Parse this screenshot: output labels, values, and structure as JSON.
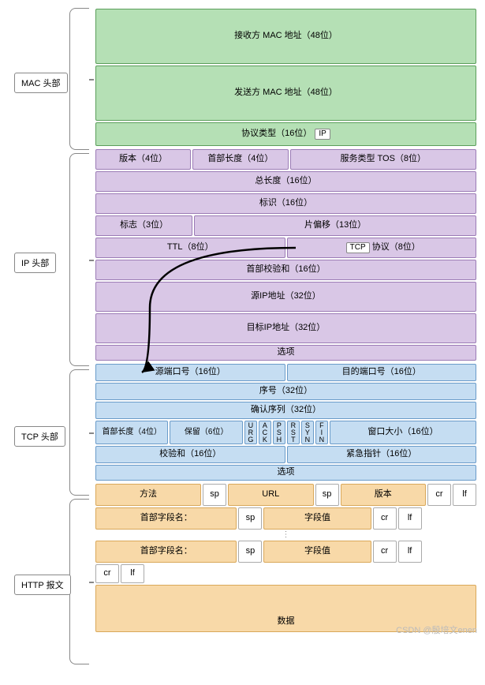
{
  "labels": {
    "mac": "MAC 头部",
    "ip": "IP 头部",
    "tcp": "TCP 头部",
    "http": "HTTP 报文"
  },
  "mac": {
    "dst": "接收方 MAC 地址（48位）",
    "src": "发送方 MAC 地址（48位）",
    "proto": "协议类型（16位）",
    "proto_badge": "IP"
  },
  "ip": {
    "version": "版本（4位）",
    "hlen": "首部长度（4位）",
    "tos": "服务类型 TOS（8位）",
    "total": "总长度（16位）",
    "ident": "标识（16位）",
    "flags": "标志（3位）",
    "fragoff": "片偏移（13位）",
    "ttl": "TTL（8位）",
    "proto": "协议（8位）",
    "proto_badge": "TCP",
    "checksum": "首部校验和（16位）",
    "srcip": "源IP地址（32位）",
    "dstip": "目标IP地址（32位）",
    "options": "选项"
  },
  "tcp": {
    "srcport": "源端口号（16位）",
    "dstport": "目的端口号（16位）",
    "seq": "序号（32位）",
    "ack": "确认序列（32位）",
    "hlen": "首部长度（4位）",
    "reserved": "保留（6位）",
    "flags": [
      "U\nR\nG",
      "A\nC\nK",
      "P\nS\nH",
      "R\nS\nT",
      "S\nY\nN",
      "F\nI\nN"
    ],
    "window": "窗口大小（16位）",
    "checksum": "校验和（16位）",
    "urgent": "紧急指针（16位）",
    "options": "选项"
  },
  "http": {
    "method": "方法",
    "sp": "sp",
    "url": "URL",
    "version": "版本",
    "cr": "cr",
    "lf": "lf",
    "hname": "首部字段名：",
    "hval": "字段值",
    "data": "数据"
  },
  "colors": {
    "mac_bg": "#b5e0b5",
    "mac_border": "#5a9e5a",
    "ip_bg": "#d9c7e6",
    "ip_border": "#9b7bb5",
    "tcp_bg": "#c5ddf2",
    "tcp_border": "#6a9bc9",
    "http_bg": "#f8d9a8",
    "http_border": "#d9a85a"
  },
  "watermark": "CSDN @殷培文enen"
}
